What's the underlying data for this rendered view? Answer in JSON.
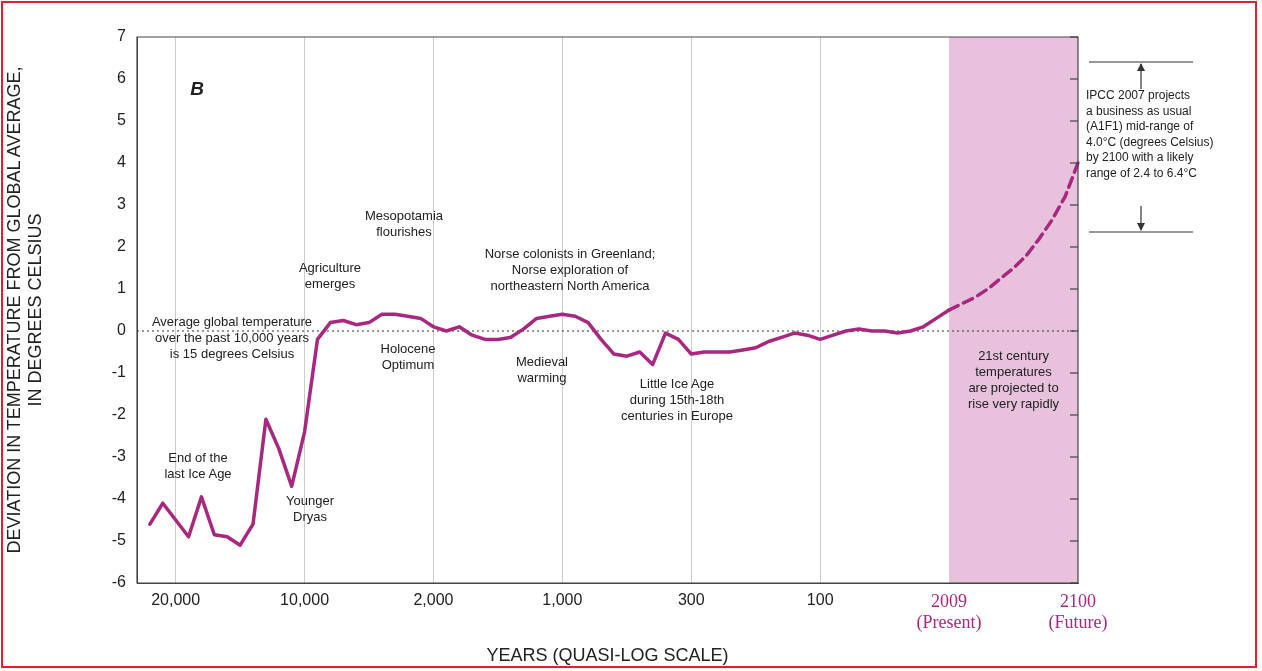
{
  "chart_data": {
    "type": "line",
    "ylabel": "DEVIATION IN TEMPERATURE FROM GLOBAL AVERAGE,\nIN DEGREES CELSIUS",
    "xlabel": "YEARS (QUASI-LOG SCALE)",
    "categories": [
      null,
      null,
      null,
      "20,000",
      null,
      null,
      null,
      null,
      null,
      null,
      null,
      null,
      null,
      "10,000",
      null,
      null,
      null,
      null,
      null,
      null,
      null,
      null,
      null,
      "2,000",
      null,
      null,
      null,
      null,
      null,
      null,
      null,
      null,
      null,
      "1,000",
      null,
      null,
      null,
      null,
      null,
      null,
      null,
      null,
      null,
      "300",
      null,
      null,
      null,
      null,
      null,
      null,
      null,
      null,
      null,
      "100",
      null,
      null,
      null,
      null,
      null,
      null,
      null,
      null,
      null,
      "2009\n(Present)",
      null,
      null,
      null,
      null,
      null,
      null,
      null,
      null,
      null,
      "2100\n(Future)"
    ],
    "series": [
      {
        "color": "#a8287f",
        "line_style": "solid",
        "values": [
          null,
          -4.6,
          -4.1,
          -4.5,
          -4.9,
          -3.95,
          -4.85,
          -4.9,
          -5.1,
          -4.6,
          -2.1,
          -2.8,
          -3.7,
          -2.4,
          -0.2,
          0.2,
          0.25,
          0.15,
          0.2,
          0.4,
          0.4,
          0.35,
          0.3,
          0.1,
          0.0,
          0.1,
          -0.1,
          -0.2,
          -0.2,
          -0.15,
          0.05,
          0.3,
          0.35,
          0.4,
          0.35,
          0.2,
          -0.2,
          -0.55,
          -0.6,
          -0.5,
          -0.8,
          -0.05,
          -0.2,
          -0.55,
          -0.5,
          -0.5,
          -0.5,
          -0.45,
          -0.4,
          -0.25,
          -0.15,
          -0.05,
          -0.1,
          -0.2,
          -0.1,
          0.0,
          0.05,
          0.0,
          0.0,
          -0.05,
          0.0,
          0.1,
          0.3,
          0.5,
          null,
          null,
          null,
          null,
          null,
          null,
          null,
          null,
          null,
          null
        ]
      },
      {
        "color": "#a8287f",
        "line_style": "dashed",
        "values": [
          null,
          null,
          null,
          null,
          null,
          null,
          null,
          null,
          null,
          null,
          null,
          null,
          null,
          null,
          null,
          null,
          null,
          null,
          null,
          null,
          null,
          null,
          null,
          null,
          null,
          null,
          null,
          null,
          null,
          null,
          null,
          null,
          null,
          null,
          null,
          null,
          null,
          null,
          null,
          null,
          null,
          null,
          null,
          null,
          null,
          null,
          null,
          null,
          null,
          null,
          null,
          null,
          null,
          null,
          null,
          null,
          null,
          null,
          null,
          null,
          null,
          null,
          null,
          0.5,
          0.65,
          0.8,
          1.0,
          1.25,
          1.5,
          1.8,
          2.2,
          2.65,
          3.2,
          4.0
        ]
      }
    ],
    "ylim": [
      -6,
      7
    ],
    "yticks": [
      -6,
      -5,
      -4,
      -3,
      -2,
      -1,
      0,
      1,
      2,
      3,
      4,
      5,
      6,
      7
    ],
    "grid": "x",
    "legend": false,
    "marker": "none",
    "ref_lines": [
      {
        "axis": "y",
        "value": 0,
        "line_style": "dotted",
        "color": "#333333",
        "label": "Average global temperature\nover the past 10,000 years\nis 15 degrees Celsius"
      }
    ],
    "bands": [
      {
        "axis": "x",
        "from": "2009\n(Present)",
        "to": "2100\n(Future)",
        "color": "#e8c1dc",
        "label": "21st century\ntemperatures\nare projected to\nrise very rapidly"
      }
    ],
    "annotations": [
      "B",
      "End of the\nlast Ice Age",
      "Younger\nDryas",
      "Agriculture\nemerges",
      "Mesopotamia\nflourishes",
      "Holocene\nOptimum",
      "Norse colonists in Greenland;\nNorse exploration of\nnortheastern North America",
      "Medieval\nwarming",
      "Little Ice Age\nduring 15th-18th\ncenturies in Europe",
      "IPCC 2007 projects\na business as usual\n(A1F1) mid-range of\n4.0°C (degrees Celsius)\nby 2100 with a likely\nrange of 2.4 to 6.4°C"
    ]
  }
}
